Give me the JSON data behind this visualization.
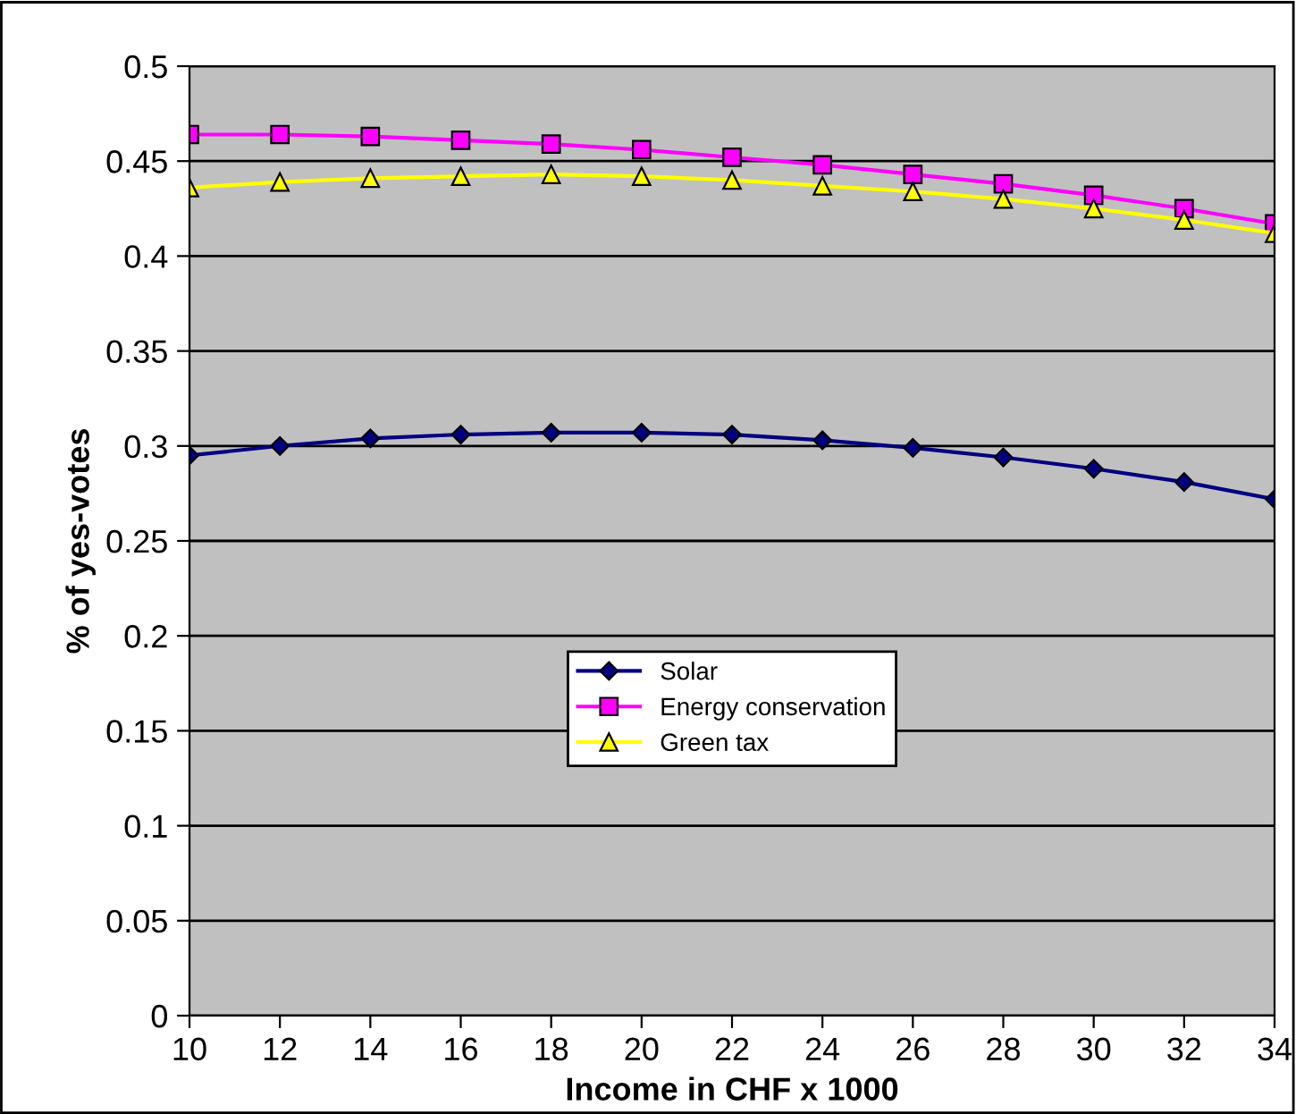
{
  "chart_data": {
    "type": "line",
    "xlabel": "Income in CHF x 1000",
    "ylabel": "% of yes-votes",
    "x": [
      10,
      12,
      14,
      16,
      18,
      20,
      22,
      24,
      26,
      28,
      30,
      32,
      34
    ],
    "series": [
      {
        "name": "Solar",
        "color": "#000080",
        "marker": "diamond",
        "values": [
          0.295,
          0.3,
          0.304,
          0.306,
          0.307,
          0.307,
          0.306,
          0.303,
          0.299,
          0.294,
          0.288,
          0.281,
          0.272
        ]
      },
      {
        "name": "Energy conservation",
        "color": "#ff00ff",
        "marker": "square",
        "values": [
          0.464,
          0.464,
          0.463,
          0.461,
          0.459,
          0.456,
          0.452,
          0.448,
          0.443,
          0.438,
          0.432,
          0.425,
          0.417
        ]
      },
      {
        "name": "Green tax",
        "color": "#ffff00",
        "marker": "triangle",
        "values": [
          0.436,
          0.439,
          0.441,
          0.442,
          0.443,
          0.442,
          0.44,
          0.437,
          0.434,
          0.43,
          0.425,
          0.419,
          0.412
        ]
      }
    ],
    "xlim": [
      10,
      34
    ],
    "xticks": [
      10,
      12,
      14,
      16,
      18,
      20,
      22,
      24,
      26,
      28,
      30,
      32,
      34
    ],
    "ylim": [
      0,
      0.5
    ],
    "yticks": [
      0,
      0.05,
      0.1,
      0.15,
      0.2,
      0.25,
      0.3,
      0.35,
      0.4,
      0.45,
      0.5
    ],
    "grid": "y",
    "legend": "bottom"
  }
}
